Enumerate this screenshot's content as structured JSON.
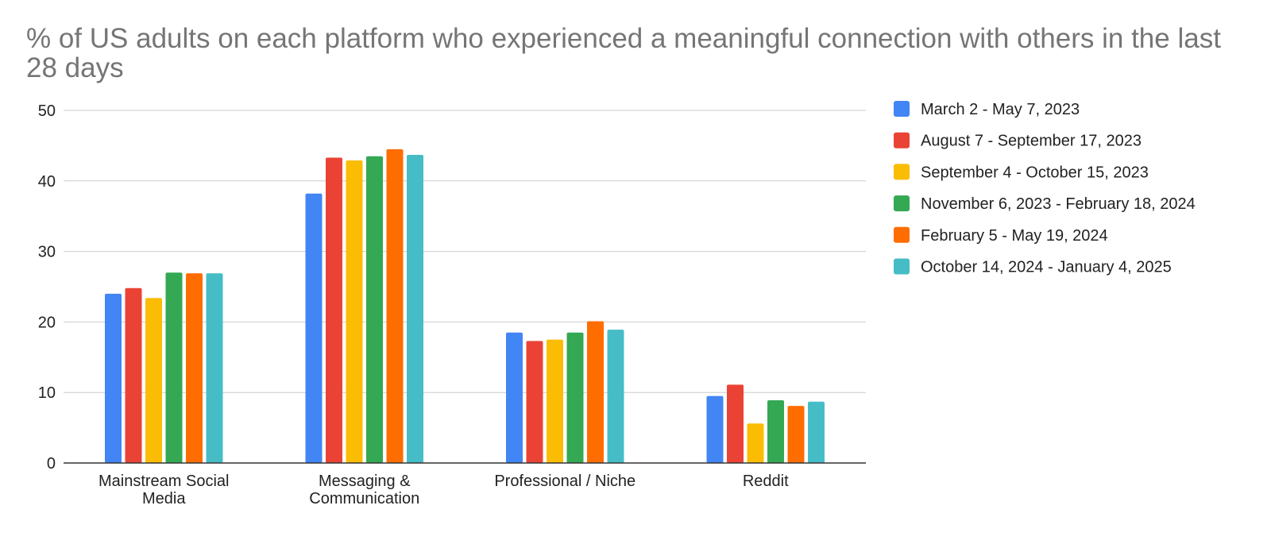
{
  "chart_data": {
    "type": "bar",
    "title": "% of US adults on each platform who experienced a meaningful connection with others in the last 28 days",
    "xlabel": "",
    "ylabel": "",
    "ylim": [
      0,
      50
    ],
    "yticks": [
      0,
      10,
      20,
      30,
      40,
      50
    ],
    "grid": true,
    "legend_position": "right",
    "categories": [
      [
        "Mainstream Social",
        "Media"
      ],
      [
        "Messaging &",
        "Communication"
      ],
      [
        "Professional / Niche"
      ],
      [
        "Reddit"
      ]
    ],
    "series": [
      {
        "name": "March 2 - May 7, 2023",
        "color": "#4285F4",
        "values": [
          24.0,
          38.2,
          18.5,
          9.5
        ]
      },
      {
        "name": "August 7 - September 17, 2023",
        "color": "#EA4335",
        "values": [
          24.8,
          43.3,
          17.3,
          11.1
        ]
      },
      {
        "name": "September 4 - October 15, 2023",
        "color": "#FBBC04",
        "values": [
          23.4,
          42.9,
          17.5,
          5.6
        ]
      },
      {
        "name": "November 6, 2023 - February 18, 2024",
        "color": "#34A853",
        "values": [
          27.0,
          43.5,
          18.5,
          8.9
        ]
      },
      {
        "name": "February 5 - May 19, 2024",
        "color": "#FF6D01",
        "values": [
          26.9,
          44.5,
          20.1,
          8.1
        ]
      },
      {
        "name": "October 14, 2024 - January 4, 2025",
        "color": "#46BDC6",
        "values": [
          26.9,
          43.7,
          18.9,
          8.7
        ]
      }
    ]
  }
}
